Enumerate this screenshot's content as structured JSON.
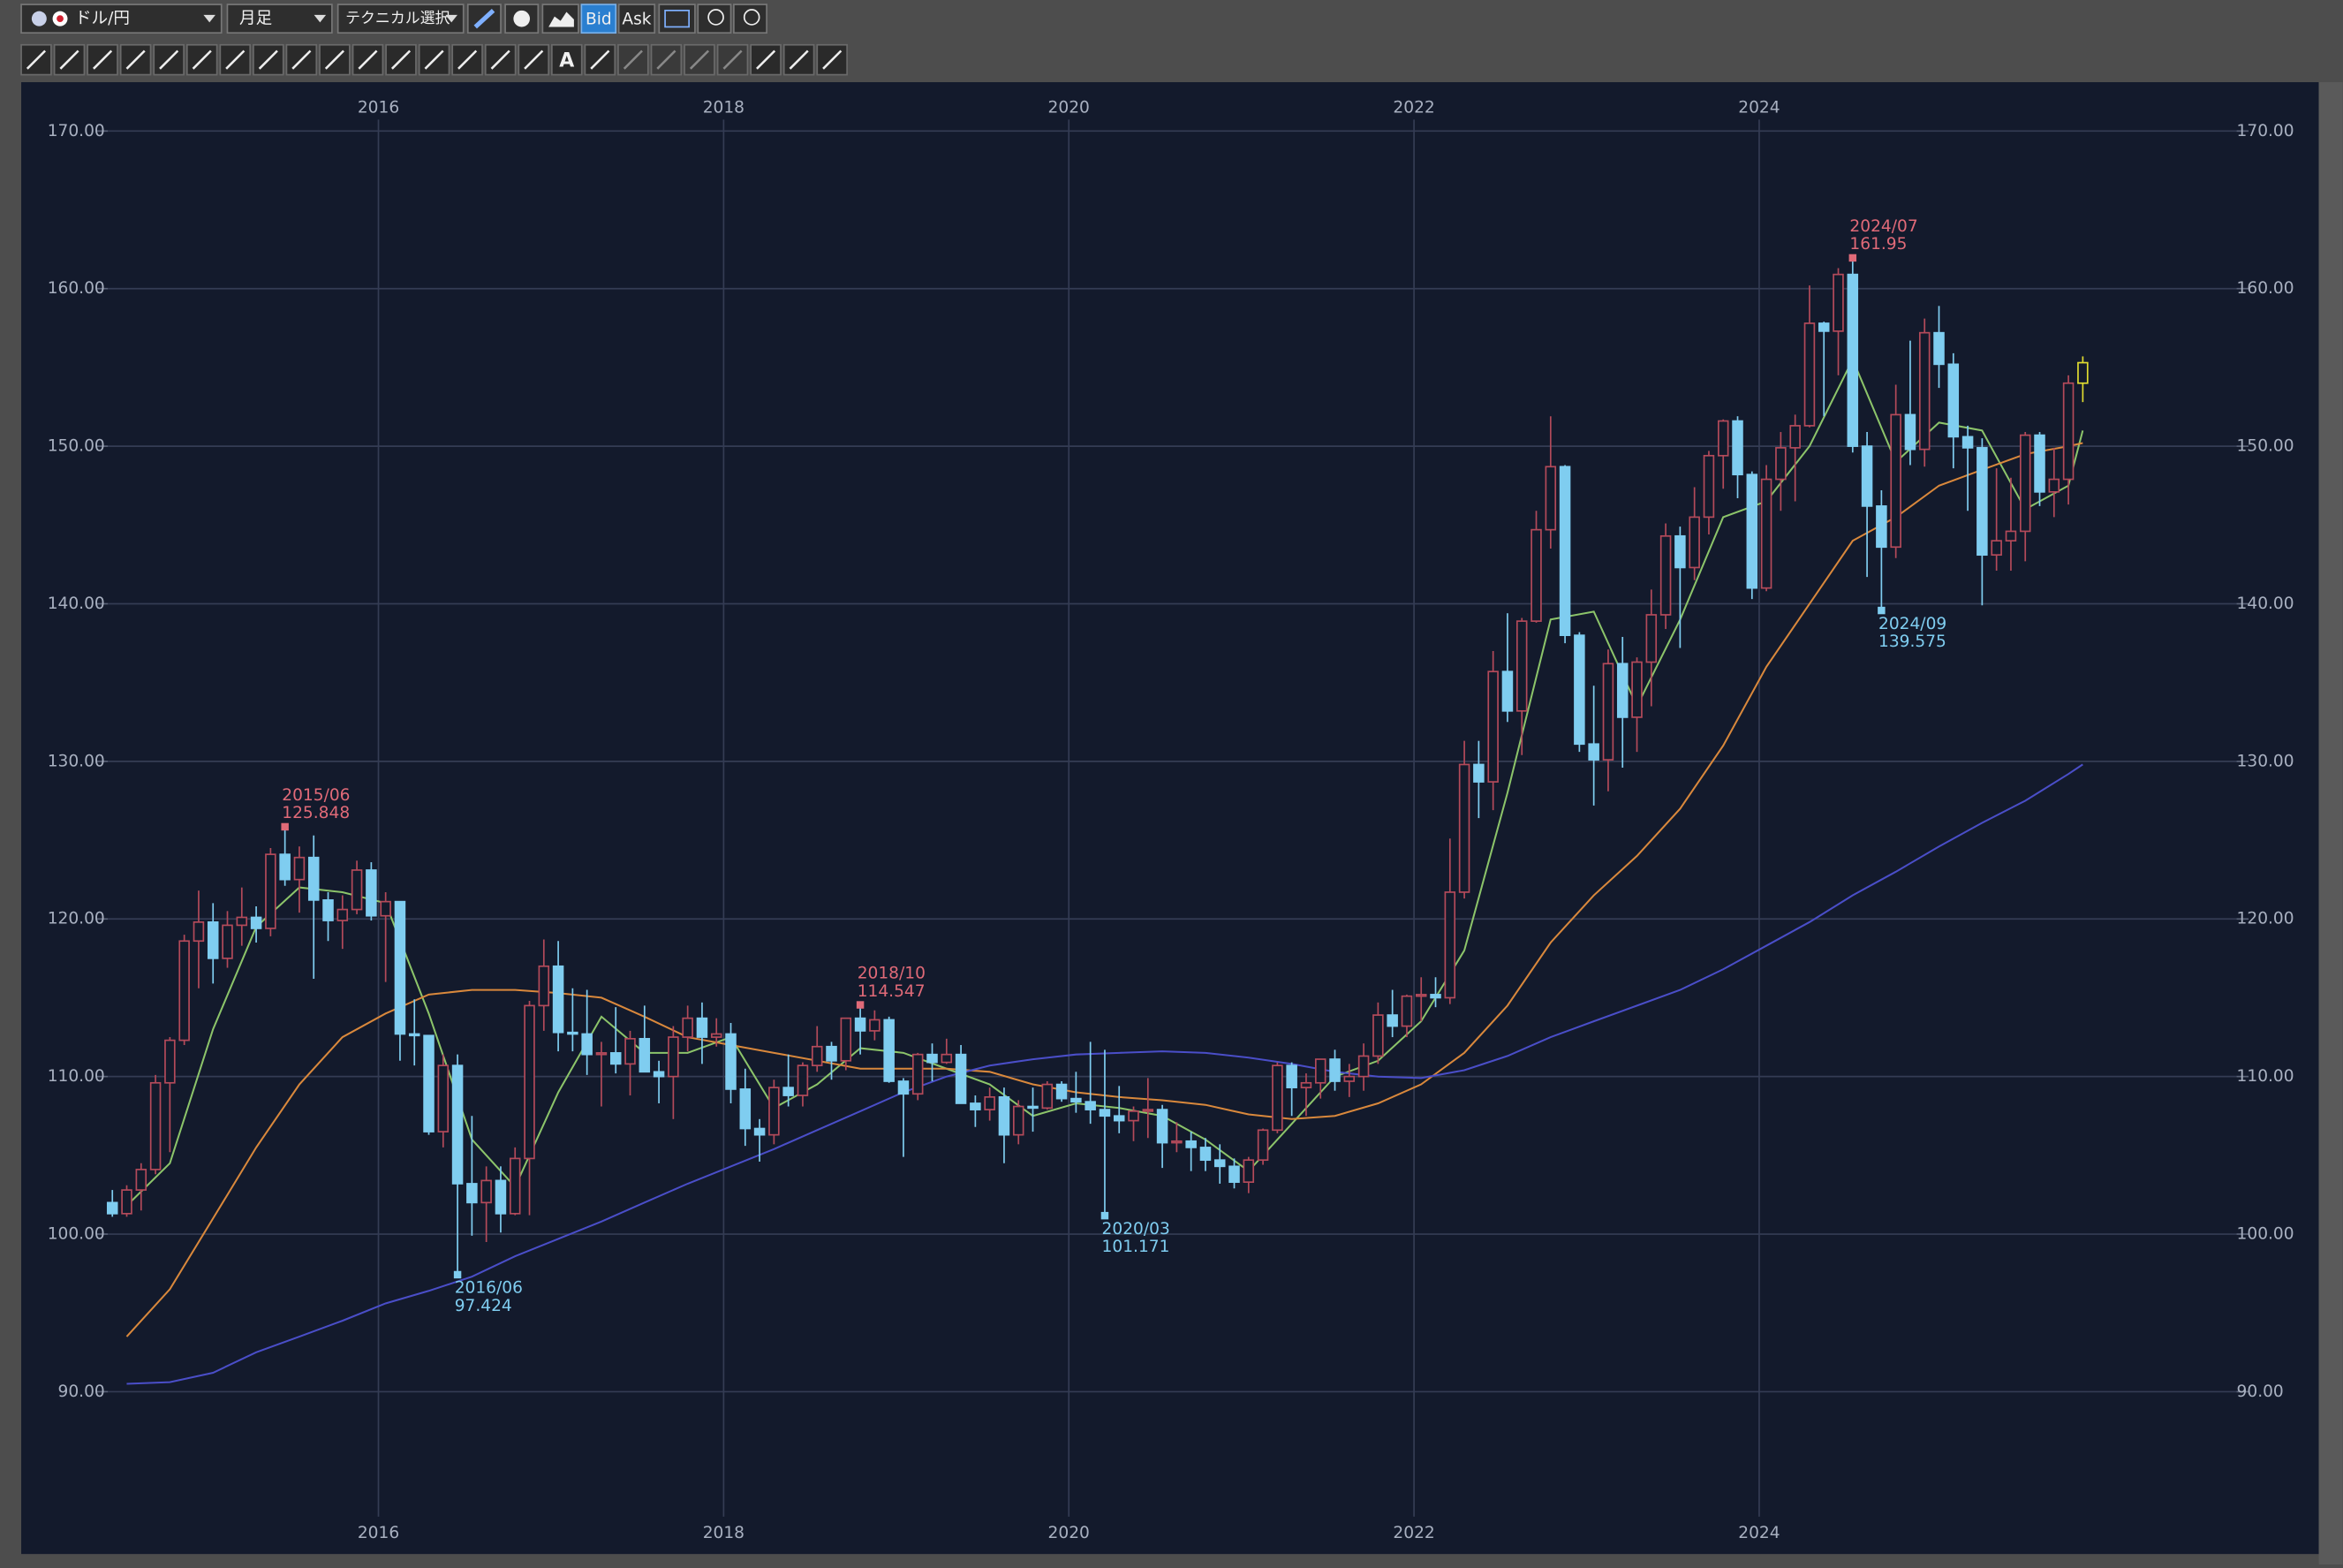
{
  "toolbar": {
    "symbol": "ドル/円",
    "period": "月足",
    "technical": "テクニカル選択",
    "bid": "Bid",
    "ask": "Ask",
    "text_tool": "A"
  },
  "chart_data": {
    "type": "candlestick",
    "categories": [
      "2014/06",
      "2014/07",
      "2014/08",
      "2014/09",
      "2014/10",
      "2014/11",
      "2014/12",
      "2015/01",
      "2015/02",
      "2015/03",
      "2015/04",
      "2015/05",
      "2015/06",
      "2015/07",
      "2015/08",
      "2015/09",
      "2015/10",
      "2015/11",
      "2015/12",
      "2016/01",
      "2016/02",
      "2016/03",
      "2016/04",
      "2016/05",
      "2016/06",
      "2016/07",
      "2016/08",
      "2016/09",
      "2016/10",
      "2016/11",
      "2016/12",
      "2017/01",
      "2017/02",
      "2017/03",
      "2017/04",
      "2017/05",
      "2017/06",
      "2017/07",
      "2017/08",
      "2017/09",
      "2017/10",
      "2017/11",
      "2017/12",
      "2018/01",
      "2018/02",
      "2018/03",
      "2018/04",
      "2018/05",
      "2018/06",
      "2018/07",
      "2018/08",
      "2018/09",
      "2018/10",
      "2018/11",
      "2018/12",
      "2019/01",
      "2019/02",
      "2019/03",
      "2019/04",
      "2019/05",
      "2019/06",
      "2019/07",
      "2019/08",
      "2019/09",
      "2019/10",
      "2019/11",
      "2019/12",
      "2020/01",
      "2020/02",
      "2020/03",
      "2020/04",
      "2020/05",
      "2020/06",
      "2020/07",
      "2020/08",
      "2020/09",
      "2020/10",
      "2020/11",
      "2020/12",
      "2021/01",
      "2021/02",
      "2021/03",
      "2021/04",
      "2021/05",
      "2021/06",
      "2021/07",
      "2021/08",
      "2021/09",
      "2021/10",
      "2021/11",
      "2021/12",
      "2022/01",
      "2022/02",
      "2022/03",
      "2022/04",
      "2022/05",
      "2022/06",
      "2022/07",
      "2022/08",
      "2022/09",
      "2022/10",
      "2022/11",
      "2022/12",
      "2023/01",
      "2023/02",
      "2023/03",
      "2023/04",
      "2023/05",
      "2023/06",
      "2023/07",
      "2023/08",
      "2023/09",
      "2023/10",
      "2023/11",
      "2023/12",
      "2024/01",
      "2024/02",
      "2024/03",
      "2024/04",
      "2024/05",
      "2024/06",
      "2024/07",
      "2024/08",
      "2024/09",
      "2024/10",
      "2024/11",
      "2024/12",
      "2025/01",
      "2025/02",
      "2025/03",
      "2025/04",
      "2025/05",
      "2025/06",
      "2025/07",
      "2025/08",
      "2025/09",
      "2025/10",
      "2025/11"
    ],
    "open": [
      102.0,
      101.3,
      102.8,
      104.1,
      109.6,
      112.3,
      118.6,
      119.8,
      117.5,
      119.6,
      120.1,
      119.4,
      124.1,
      122.5,
      123.9,
      121.2,
      119.9,
      120.6,
      123.1,
      120.2,
      121.1,
      112.7,
      112.6,
      106.5,
      110.7,
      103.2,
      102.0,
      103.4,
      101.3,
      104.8,
      114.5,
      117.0,
      112.8,
      112.7,
      111.4,
      111.5,
      110.8,
      112.4,
      110.3,
      110.0,
      112.5,
      113.7,
      112.5,
      112.7,
      109.2,
      106.7,
      106.3,
      109.3,
      108.8,
      110.7,
      111.9,
      111.0,
      113.7,
      112.9,
      113.6,
      109.7,
      108.9,
      111.4,
      110.9,
      111.4,
      108.3,
      107.9,
      108.7,
      106.3,
      108.1,
      108.0,
      109.5,
      108.6,
      108.4,
      107.9,
      107.5,
      107.2,
      107.8,
      107.9,
      105.8,
      105.9,
      105.5,
      104.7,
      104.3,
      103.3,
      104.7,
      106.6,
      110.7,
      109.3,
      109.6,
      111.1,
      109.7,
      110.0,
      111.3,
      113.9,
      113.2,
      115.1,
      115.2,
      115.0,
      121.7,
      129.8,
      128.7,
      135.7,
      133.2,
      138.9,
      144.7,
      148.7,
      138.0,
      131.1,
      130.1,
      136.2,
      132.8,
      136.3,
      139.3,
      144.3,
      142.3,
      145.5,
      149.4,
      151.6,
      148.2,
      141.0,
      147.9,
      149.9,
      151.3,
      157.8,
      157.3,
      160.9,
      150.0,
      146.2,
      143.6,
      152.0,
      149.8,
      157.2,
      155.2,
      150.6,
      149.9,
      143.1,
      144.0,
      144.6,
      150.7,
      147.1,
      147.9,
      154.0
    ],
    "high": [
      102.8,
      103.1,
      104.5,
      110.1,
      112.5,
      119.0,
      121.8,
      121.0,
      120.5,
      122.0,
      120.8,
      124.5,
      125.848,
      124.6,
      125.3,
      121.7,
      121.5,
      123.7,
      123.6,
      121.7,
      121.1,
      114.9,
      112.6,
      111.4,
      111.4,
      107.5,
      104.3,
      104.3,
      105.5,
      114.8,
      118.7,
      118.6,
      115.6,
      115.5,
      112.2,
      114.4,
      112.9,
      114.5,
      111.0,
      113.2,
      114.5,
      114.7,
      113.7,
      113.4,
      110.5,
      107.3,
      109.8,
      111.4,
      110.9,
      113.2,
      112.2,
      113.7,
      114.547,
      114.2,
      113.8,
      109.9,
      111.5,
      112.1,
      112.4,
      112.0,
      108.8,
      109.3,
      109.3,
      108.5,
      109.3,
      109.7,
      109.7,
      110.3,
      112.2,
      111.7,
      109.4,
      108.1,
      109.9,
      108.2,
      107.1,
      106.5,
      106.1,
      105.7,
      104.8,
      104.9,
      106.7,
      110.9,
      110.9,
      110.2,
      111.1,
      111.7,
      110.8,
      112.1,
      114.7,
      115.5,
      115.2,
      116.3,
      116.3,
      125.1,
      131.3,
      131.3,
      137.0,
      139.4,
      139.1,
      145.9,
      151.9,
      148.8,
      138.2,
      134.8,
      137.1,
      137.9,
      136.6,
      140.9,
      145.1,
      144.9,
      147.4,
      149.7,
      151.7,
      151.9,
      148.4,
      148.8,
      150.9,
      152.0,
      160.2,
      157.9,
      161.3,
      161.95,
      150.9,
      147.2,
      153.9,
      156.7,
      158.1,
      158.9,
      155.9,
      151.3,
      150.5,
      148.6,
      148.0,
      150.9,
      150.9,
      149.9,
      154.5,
      155.7
    ],
    "low": [
      101.1,
      101.1,
      101.5,
      103.8,
      105.2,
      112.0,
      115.6,
      115.9,
      116.9,
      118.3,
      118.5,
      118.9,
      122.1,
      120.4,
      116.2,
      118.6,
      118.1,
      120.3,
      119.9,
      116.0,
      111.0,
      110.7,
      106.3,
      105.5,
      97.424,
      99.9,
      99.5,
      100.1,
      101.2,
      101.2,
      112.9,
      111.6,
      111.6,
      110.1,
      108.1,
      110.2,
      108.8,
      110.6,
      108.3,
      107.3,
      111.6,
      110.8,
      111.9,
      108.3,
      105.6,
      104.6,
      105.7,
      108.1,
      108.1,
      110.3,
      109.8,
      110.4,
      111.4,
      112.3,
      109.6,
      104.9,
      108.5,
      109.7,
      110.8,
      108.3,
      106.8,
      107.2,
      104.5,
      105.7,
      106.5,
      107.9,
      108.4,
      107.7,
      107.0,
      101.171,
      106.4,
      105.9,
      106.1,
      104.2,
      105.2,
      104.0,
      104.0,
      103.2,
      102.9,
      102.6,
      104.4,
      106.4,
      107.5,
      107.5,
      108.6,
      109.1,
      108.7,
      109.1,
      110.8,
      112.5,
      112.5,
      113.5,
      114.4,
      114.6,
      121.3,
      126.4,
      126.9,
      132.5,
      130.4,
      138.8,
      143.5,
      137.5,
      130.6,
      127.2,
      128.1,
      129.6,
      130.6,
      133.5,
      138.4,
      137.2,
      141.5,
      144.4,
      147.3,
      146.7,
      140.3,
      140.8,
      145.9,
      146.5,
      151.2,
      151.9,
      154.5,
      149.6,
      141.7,
      139.575,
      142.9,
      148.8,
      148.7,
      153.7,
      148.6,
      145.9,
      139.9,
      142.1,
      142.1,
      142.7,
      146.2,
      145.5,
      146.3,
      152.8
    ],
    "close": [
      101.3,
      102.8,
      104.1,
      109.6,
      112.3,
      118.6,
      119.8,
      117.5,
      119.6,
      120.1,
      119.4,
      124.1,
      122.5,
      123.9,
      121.2,
      119.9,
      120.6,
      123.1,
      120.2,
      121.1,
      112.7,
      112.6,
      106.5,
      110.7,
      103.2,
      102.0,
      103.4,
      101.3,
      104.8,
      114.5,
      117.0,
      112.8,
      112.7,
      111.4,
      111.5,
      110.8,
      112.4,
      110.3,
      110.0,
      112.5,
      113.7,
      112.5,
      112.7,
      109.2,
      106.7,
      106.3,
      109.3,
      108.8,
      110.7,
      111.9,
      111.0,
      113.7,
      112.9,
      113.6,
      109.7,
      108.9,
      111.4,
      110.9,
      111.4,
      108.3,
      107.9,
      108.7,
      106.3,
      108.1,
      108.0,
      109.5,
      108.6,
      108.4,
      107.9,
      107.5,
      107.2,
      107.8,
      107.9,
      105.8,
      105.9,
      105.5,
      104.7,
      104.3,
      103.3,
      104.7,
      106.6,
      110.7,
      109.3,
      109.6,
      111.1,
      109.7,
      110.0,
      111.3,
      113.9,
      113.2,
      115.1,
      115.2,
      115.0,
      121.7,
      129.8,
      128.7,
      135.7,
      133.2,
      138.9,
      144.7,
      148.7,
      138.0,
      131.1,
      130.1,
      136.2,
      132.8,
      136.3,
      139.3,
      144.3,
      142.3,
      145.5,
      149.4,
      151.6,
      148.2,
      141.0,
      147.9,
      149.9,
      151.3,
      157.8,
      157.3,
      160.9,
      150.0,
      146.2,
      143.6,
      152.0,
      149.8,
      157.2,
      155.2,
      150.6,
      149.9,
      143.1,
      144.0,
      144.6,
      150.7,
      147.1,
      147.9,
      154.0,
      155.3
    ],
    "up_color": "#b34a5a",
    "down_color": "#7fcdf0",
    "last_color": "#e0dc30",
    "ma_dates": [
      "2014/07",
      "2014/10",
      "2015/01",
      "2015/04",
      "2015/07",
      "2015/10",
      "2016/01",
      "2016/04",
      "2016/07",
      "2016/10",
      "2017/01",
      "2017/04",
      "2017/07",
      "2017/10",
      "2018/01",
      "2018/04",
      "2018/07",
      "2018/10",
      "2019/01",
      "2019/04",
      "2019/07",
      "2019/10",
      "2020/01",
      "2020/04",
      "2020/07",
      "2020/10",
      "2021/01",
      "2021/04",
      "2021/07",
      "2021/10",
      "2022/01",
      "2022/04",
      "2022/07",
      "2022/10",
      "2023/01",
      "2023/04",
      "2023/07",
      "2023/10",
      "2024/01",
      "2024/04",
      "2024/07",
      "2024/10",
      "2025/01",
      "2025/04",
      "2025/07",
      "2025/10",
      "2025/11"
    ],
    "moving_averages": [
      {
        "color": "#8cc46a",
        "values": [
          101.8,
          104.5,
          113,
          119.5,
          122,
          121.7,
          121,
          114,
          106,
          103,
          109,
          113.8,
          111.5,
          111.5,
          112.5,
          108,
          109.5,
          111.8,
          111.5,
          110.5,
          109.5,
          107.5,
          108.3,
          108,
          107.5,
          106,
          104,
          107,
          110,
          111,
          113.5,
          118,
          128,
          139,
          139.5,
          133.5,
          139,
          145.5,
          146.5,
          150,
          155.5,
          149,
          151.5,
          151,
          146,
          147.5,
          151
        ]
      },
      {
        "color": "#d9883c",
        "values": [
          93.5,
          96.5,
          101,
          105.5,
          109.5,
          112.5,
          114,
          115.2,
          115.5,
          115.5,
          115.3,
          115,
          113.8,
          112.5,
          112,
          111.5,
          111,
          110.5,
          110.5,
          110.5,
          110.3,
          109.5,
          109,
          108.7,
          108.5,
          108.2,
          107.6,
          107.3,
          107.5,
          108.3,
          109.5,
          111.5,
          114.5,
          118.5,
          121.5,
          124,
          127,
          131,
          136,
          140,
          144,
          145.5,
          147.5,
          148.5,
          149.5,
          150,
          150.2
        ]
      },
      {
        "color": "#4a4ec8",
        "values": [
          90.5,
          90.6,
          91.2,
          92.5,
          93.5,
          94.5,
          95.6,
          96.4,
          97.3,
          98.6,
          99.7,
          100.8,
          102,
          103.2,
          104.3,
          105.4,
          106.6,
          107.8,
          109,
          110,
          110.7,
          111.1,
          111.4,
          111.5,
          111.6,
          111.5,
          111.2,
          110.8,
          110.3,
          110,
          109.9,
          110.4,
          111.3,
          112.5,
          113.5,
          114.5,
          115.5,
          116.8,
          118.3,
          119.8,
          121.5,
          123,
          124.6,
          126.1,
          127.5,
          129.2,
          129.8
        ]
      }
    ],
    "annotations": [
      {
        "date": "2015/06",
        "value": 125.848,
        "color": "#e06a78"
      },
      {
        "date": "2016/06",
        "value": 97.424,
        "color": "#7fcdf0"
      },
      {
        "date": "2018/10",
        "value": 114.547,
        "color": "#e06a78"
      },
      {
        "date": "2020/03",
        "value": 101.171,
        "color": "#7fcdf0"
      },
      {
        "date": "2024/07",
        "value": 161.95,
        "color": "#e06a78"
      },
      {
        "date": "2024/09",
        "value": 139.575,
        "color": "#7fcdf0"
      }
    ],
    "ylim": [
      79.7,
      173.1
    ],
    "yticks": [
      {
        "value": 90,
        "label": "90.00"
      },
      {
        "value": 100,
        "label": "100.00"
      },
      {
        "value": 110,
        "label": "110.00"
      },
      {
        "value": 120,
        "label": "120.00"
      },
      {
        "value": 130,
        "label": "130.00"
      },
      {
        "value": 140,
        "label": "140.00"
      },
      {
        "value": 150,
        "label": "150.00"
      },
      {
        "value": 160,
        "label": "160.00"
      },
      {
        "value": 170,
        "label": "170.00"
      }
    ],
    "xticks": [
      2016,
      2018,
      2020,
      2022,
      2024
    ],
    "grid": true
  }
}
